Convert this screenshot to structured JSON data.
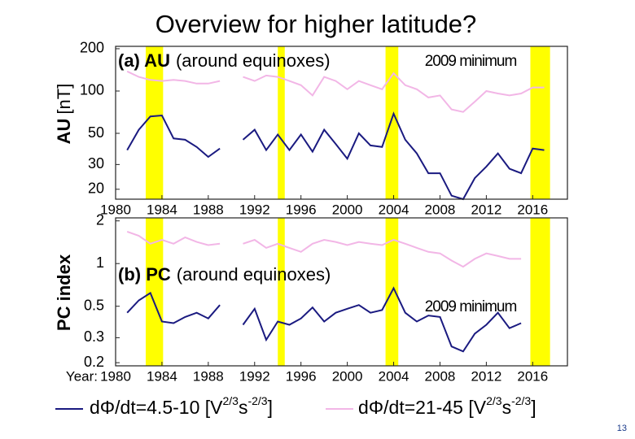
{
  "title": "Overview for higher latitude?",
  "slide_number": "13",
  "legend": [
    {
      "color": "#1a1a80",
      "parts": [
        "dΦ/dt=4.5-10 [V",
        "2/3",
        "s",
        "-2/3",
        "]"
      ]
    },
    {
      "color": "#f2b6e6",
      "parts": [
        "dΦ/dt=21-45 [V",
        "2/3",
        "s",
        "-2/3",
        "]"
      ]
    }
  ],
  "chart_data": [
    {
      "type": "line",
      "log_y": true,
      "ylabel_bold": "AU",
      "ylabel": "[nT]",
      "annotation_bold": "(a) AU",
      "annotation": "(around equinoxes)",
      "callout": "2009 minimum",
      "band_color": "#ffff00",
      "bands": [
        [
          1982.6,
          1984.1
        ],
        [
          1994.0,
          1994.6
        ],
        [
          2003.3,
          2004.4
        ],
        [
          2015.8,
          2017.5
        ]
      ],
      "x": [
        1981,
        1982,
        1983,
        1984,
        1985,
        1986,
        1987,
        1988,
        1989,
        1990,
        1991,
        1992,
        1993,
        1994,
        1995,
        1996,
        1997,
        1998,
        1999,
        2000,
        2001,
        2002,
        2003,
        2004,
        2005,
        2006,
        2007,
        2008,
        2009,
        2010,
        2011,
        2012,
        2013,
        2014,
        2015,
        2016,
        2017
      ],
      "series": [
        {
          "color": "#1a1a80",
          "values": [
            38,
            53,
            66,
            67,
            46,
            45,
            40,
            34,
            39,
            null,
            45,
            53,
            38,
            49,
            38,
            49,
            37,
            53,
            42,
            33,
            50,
            41,
            40,
            69,
            45,
            36,
            26,
            26,
            18,
            17,
            24,
            29,
            36,
            28,
            26,
            39,
            38
          ]
        },
        {
          "color": "#f2b6e6",
          "values": [
            138,
            126,
            120,
            118,
            120,
            118,
            113,
            113,
            118,
            null,
            126,
            118,
            129,
            126,
            118,
            110,
            93,
            126,
            118,
            103,
            118,
            110,
            103,
            134,
            110,
            103,
            90,
            93,
            74,
            71,
            84,
            100,
            96,
            93,
            96,
            106,
            106
          ]
        }
      ],
      "xlim": [
        1980,
        2019
      ],
      "xticks": [
        1980,
        1984,
        1988,
        1992,
        1996,
        2000,
        2004,
        2008,
        2012,
        2016
      ],
      "ylim": [
        17,
        208
      ],
      "yticks": [
        20,
        30,
        50,
        100,
        200
      ]
    },
    {
      "type": "line",
      "log_y": true,
      "ylabel_bold": "PC index",
      "annotation_bold": "(b) PC",
      "annotation": "(around equinoxes)",
      "callout": "2009 minimum",
      "xlabel": "Year:",
      "band_color": "#ffff00",
      "bands": [
        [
          1982.6,
          1984.1
        ],
        [
          1994.0,
          1994.6
        ],
        [
          2003.3,
          2004.4
        ],
        [
          2015.8,
          2017.5
        ]
      ],
      "x": [
        1981,
        1982,
        1983,
        1984,
        1985,
        1986,
        1987,
        1988,
        1989,
        1990,
        1991,
        1992,
        1993,
        1994,
        1995,
        1996,
        1997,
        1998,
        1999,
        2000,
        2001,
        2002,
        2003,
        2004,
        2005,
        2006,
        2007,
        2008,
        2009,
        2010,
        2011,
        2012,
        2013,
        2014,
        2015
      ],
      "series": [
        {
          "color": "#1a1a80",
          "values": [
            0.45,
            0.55,
            0.62,
            0.39,
            0.38,
            0.42,
            0.45,
            0.41,
            0.51,
            null,
            0.37,
            0.48,
            0.29,
            0.39,
            0.37,
            0.41,
            0.49,
            0.39,
            0.45,
            0.48,
            0.51,
            0.45,
            0.47,
            0.67,
            0.45,
            0.39,
            0.43,
            0.42,
            0.26,
            0.24,
            0.32,
            0.37,
            0.45,
            0.35,
            0.38
          ]
        },
        {
          "color": "#f2b6e6",
          "values": [
            1.68,
            1.57,
            1.38,
            1.47,
            1.38,
            1.53,
            1.42,
            1.35,
            1.38,
            null,
            1.38,
            1.47,
            1.29,
            1.38,
            1.29,
            1.21,
            1.38,
            1.47,
            1.42,
            1.35,
            1.42,
            1.38,
            1.35,
            1.47,
            1.38,
            1.29,
            1.21,
            1.18,
            1.05,
            0.95,
            1.08,
            1.18,
            1.13,
            1.08,
            1.08
          ]
        }
      ],
      "xlim": [
        1980,
        2019
      ],
      "xticks": [
        1980,
        1984,
        1988,
        1992,
        1996,
        2000,
        2004,
        2008,
        2012,
        2016
      ],
      "ylim": [
        0.19,
        2.1
      ],
      "yticks": [
        0.2,
        0.3,
        0.5,
        1,
        2
      ]
    }
  ]
}
